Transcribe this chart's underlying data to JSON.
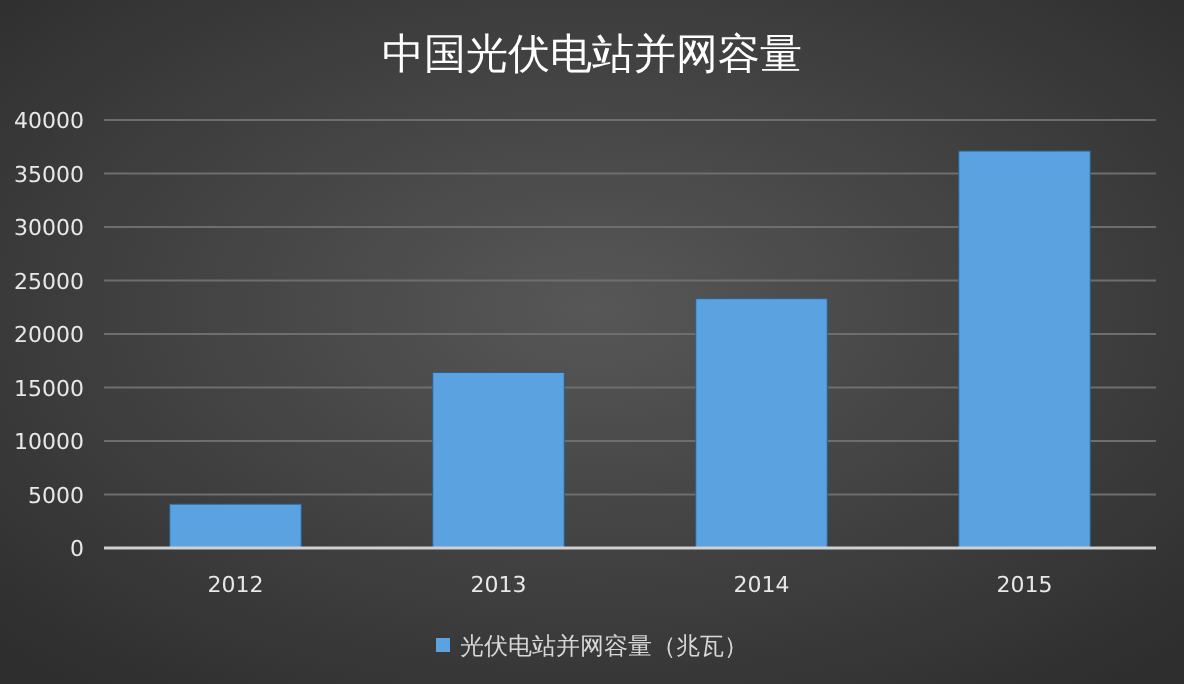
{
  "chart_data": {
    "type": "bar",
    "title": "中国光伏电站并网容量",
    "categories": [
      "2012",
      "2013",
      "2014",
      "2015"
    ],
    "series": [
      {
        "name": "光伏电站并网容量（兆瓦）",
        "color": "#5ba3e0",
        "values": [
          4100,
          16400,
          23300,
          37100
        ]
      }
    ],
    "ylim": [
      0,
      40000
    ],
    "yticks": [
      0,
      5000,
      10000,
      15000,
      20000,
      25000,
      30000,
      35000,
      40000
    ],
    "grid": "y",
    "legend": "bottom"
  }
}
